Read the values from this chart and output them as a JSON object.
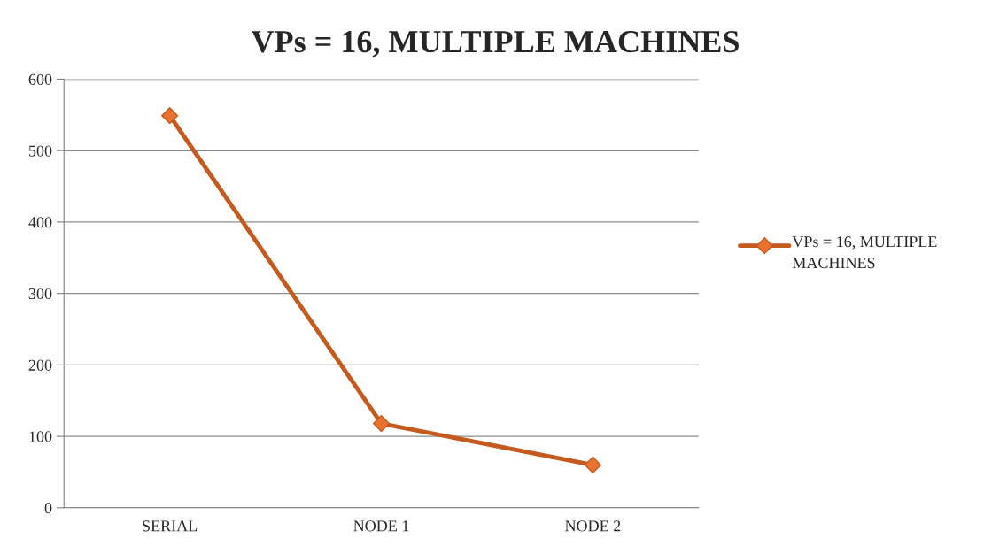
{
  "chart_data": {
    "type": "line",
    "title": "VPs = 16, MULTIPLE MACHINES",
    "categories": [
      "SERIAL",
      "NODE 1",
      "NODE 2"
    ],
    "series": [
      {
        "name": "VPs = 16, MULTIPLE MACHINES",
        "color": "#c55a1e",
        "values": [
          549,
          118,
          60
        ]
      }
    ],
    "ylim": [
      0,
      600
    ],
    "yticks": [
      0,
      100,
      200,
      300,
      400,
      500,
      600
    ],
    "grid": "y",
    "legend": "right",
    "marker": "diamond",
    "line_style": "solid"
  }
}
